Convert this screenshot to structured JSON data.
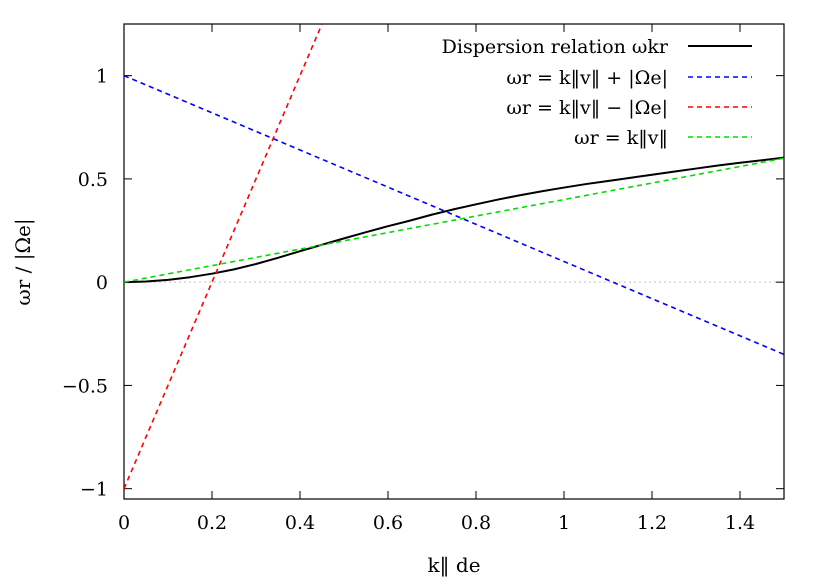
{
  "chart_data": {
    "type": "line",
    "title": "",
    "xlabel": "k‖ de",
    "ylabel": "ωr / |Ωe|",
    "xlim": [
      0,
      1.5
    ],
    "ylim": [
      -1.05,
      1.25
    ],
    "xticks": [
      0,
      0.2,
      0.4,
      0.6,
      0.8,
      1,
      1.2,
      1.4
    ],
    "xtick_labels": [
      "0",
      "0.2",
      "0.4",
      "0.6",
      "0.8",
      "1",
      "1.2",
      "1.4"
    ],
    "yticks": [
      -1,
      -0.5,
      0,
      0.5,
      1
    ],
    "ytick_labels": [
      "−1",
      "−0.5",
      "0",
      "0.5",
      "1"
    ],
    "grid": false,
    "zero_line": true,
    "legend_position": "top-right",
    "series": [
      {
        "name": "Dispersion relation ωkr",
        "color": "#000000",
        "style": "solid",
        "x": [
          0,
          0.05,
          0.1,
          0.15,
          0.2,
          0.25,
          0.3,
          0.35,
          0.4,
          0.45,
          0.5,
          0.55,
          0.6,
          0.65,
          0.7,
          0.75,
          0.8,
          0.85,
          0.9,
          0.95,
          1.0,
          1.05,
          1.1,
          1.15,
          1.2,
          1.25,
          1.3,
          1.35,
          1.4,
          1.45,
          1.5
        ],
        "y": [
          0,
          0.003,
          0.011,
          0.024,
          0.041,
          0.062,
          0.088,
          0.118,
          0.15,
          0.181,
          0.212,
          0.242,
          0.271,
          0.298,
          0.327,
          0.353,
          0.377,
          0.4,
          0.421,
          0.44,
          0.458,
          0.475,
          0.49,
          0.505,
          0.52,
          0.535,
          0.55,
          0.565,
          0.578,
          0.59,
          0.603
        ]
      },
      {
        "name": "ωr = k‖v‖ + |Ωe|",
        "color": "#0000ff",
        "style": "dashed",
        "x": [
          0,
          1.5
        ],
        "y": [
          1.0,
          -0.35
        ]
      },
      {
        "name": "ωr = k‖v‖ − |Ωe|",
        "color": "#ff0000",
        "style": "dashed",
        "x": [
          0,
          0.45
        ],
        "y": [
          -1.0,
          1.25
        ]
      },
      {
        "name": "ωr = k‖v‖",
        "color": "#00dd00",
        "style": "dashed",
        "x": [
          0,
          1.5
        ],
        "y": [
          0,
          0.6
        ]
      }
    ]
  }
}
